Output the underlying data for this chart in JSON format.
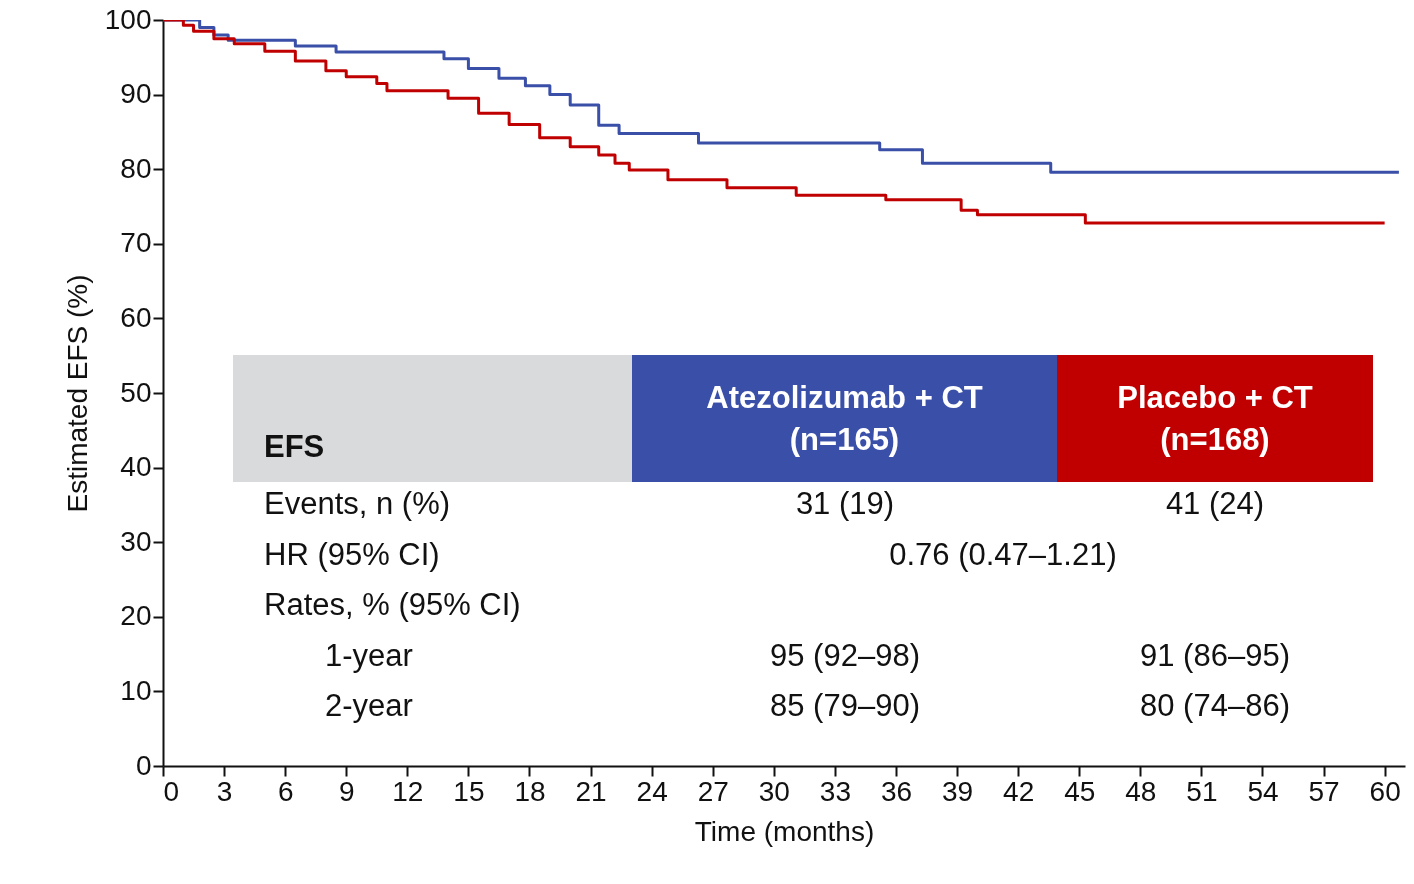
{
  "chart_data": {
    "type": "step",
    "xlabel": "Time (months)",
    "ylabel": "Estimated EFS (%)",
    "xlim": [
      0,
      61
    ],
    "xticks": [
      0,
      3,
      6,
      9,
      12,
      15,
      18,
      21,
      24,
      27,
      30,
      33,
      36,
      39,
      42,
      45,
      48,
      51,
      54,
      57,
      60
    ],
    "ylim": [
      0,
      100
    ],
    "yticks": [
      0,
      10,
      20,
      30,
      40,
      50,
      60,
      70,
      80,
      90,
      100
    ],
    "grid": false,
    "line_style": "solid",
    "series": [
      {
        "color": "#3a4fa8",
        "x": [
          0,
          1.8,
          2.5,
          3.2,
          6.5,
          8.5,
          13.8,
          15,
          16.5,
          17.8,
          19,
          20,
          21.4,
          22.4,
          26.3,
          35.2,
          37.3,
          43.6,
          60.7
        ],
        "values": [
          100,
          99,
          98,
          97.3,
          96.5,
          95.7,
          94.8,
          93.5,
          92.2,
          91.2,
          90,
          88.6,
          85.9,
          84.8,
          83.5,
          82.6,
          80.8,
          79.6,
          79.6
        ]
      },
      {
        "color": "#c00000",
        "x": [
          0,
          1,
          1.5,
          2.5,
          3.5,
          5,
          6.5,
          8,
          9,
          10.5,
          11,
          14,
          15.5,
          17,
          18.5,
          20,
          21.4,
          22.2,
          22.9,
          24.8,
          27.7,
          31.1,
          35.5,
          39.2,
          40,
          45.3,
          60
        ],
        "values": [
          100,
          99.3,
          98.5,
          97.5,
          96.8,
          95.8,
          94.5,
          93.2,
          92.4,
          91.5,
          90.5,
          89.5,
          87.5,
          86,
          84.2,
          83,
          81.9,
          80.8,
          79.9,
          78.6,
          77.5,
          76.5,
          75.9,
          74.5,
          73.9,
          72.8,
          72.8
        ]
      }
    ],
    "annotations": [
      "EFS",
      "Atezolizumab + CT",
      "(n=165)",
      "Placebo + CT",
      "(n=168)",
      "Events, n (%)",
      "31 (19)",
      "41 (24)",
      "HR (95% CI)",
      "0.76 (0.47–1.21)",
      "Rates, % (95% CI)",
      "1-year",
      "95 (92–98)",
      "91 (86–95)",
      "2-year",
      "85 (79–90)",
      "80 (74–86)"
    ]
  }
}
